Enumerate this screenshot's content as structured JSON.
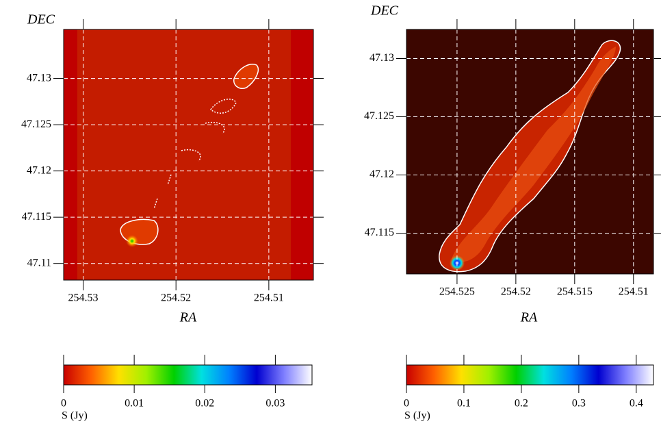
{
  "chart_data": [
    {
      "type": "image",
      "xlabel": "RA",
      "ylabel": "DEC",
      "xlim": [
        254.5321,
        254.5052
      ],
      "xticks": [
        254.53,
        254.52,
        254.51
      ],
      "ylim": [
        47.1082,
        47.1353
      ],
      "yticks": [
        47.11,
        47.115,
        47.12,
        47.125,
        47.13
      ],
      "grid": true
    },
    {
      "type": "image",
      "xlabel": "RA",
      "ylabel": "DEC",
      "xlim": [
        254.5293,
        254.5083
      ],
      "xticks": [
        254.525,
        254.52,
        254.515,
        254.51
      ],
      "ylim": [
        47.1115,
        47.1325
      ],
      "yticks": [
        47.115,
        47.12,
        47.125,
        47.13
      ],
      "grid": true
    },
    {
      "type": "colorbar",
      "xlabel": "S (Jy)",
      "xlim": [
        0,
        0.0352
      ],
      "xticks": [
        0,
        0.01,
        0.02,
        0.03
      ],
      "colors": [
        "#c80000",
        "#ff6000",
        "#ffe000",
        "#a0f000",
        "#00d000",
        "#00e0e0",
        "#0080ff",
        "#0000d0",
        "#8080ff",
        "#ffffff"
      ]
    },
    {
      "type": "colorbar",
      "xlabel": "S (Jy)",
      "xlim": [
        0,
        0.43
      ],
      "xticks": [
        0,
        0.1,
        0.2,
        0.3,
        0.4
      ],
      "colors": [
        "#c80000",
        "#ff6000",
        "#ffe000",
        "#a0f000",
        "#00d000",
        "#00e0e0",
        "#0080ff",
        "#0000d0",
        "#8080ff",
        "#ffffff"
      ]
    }
  ]
}
